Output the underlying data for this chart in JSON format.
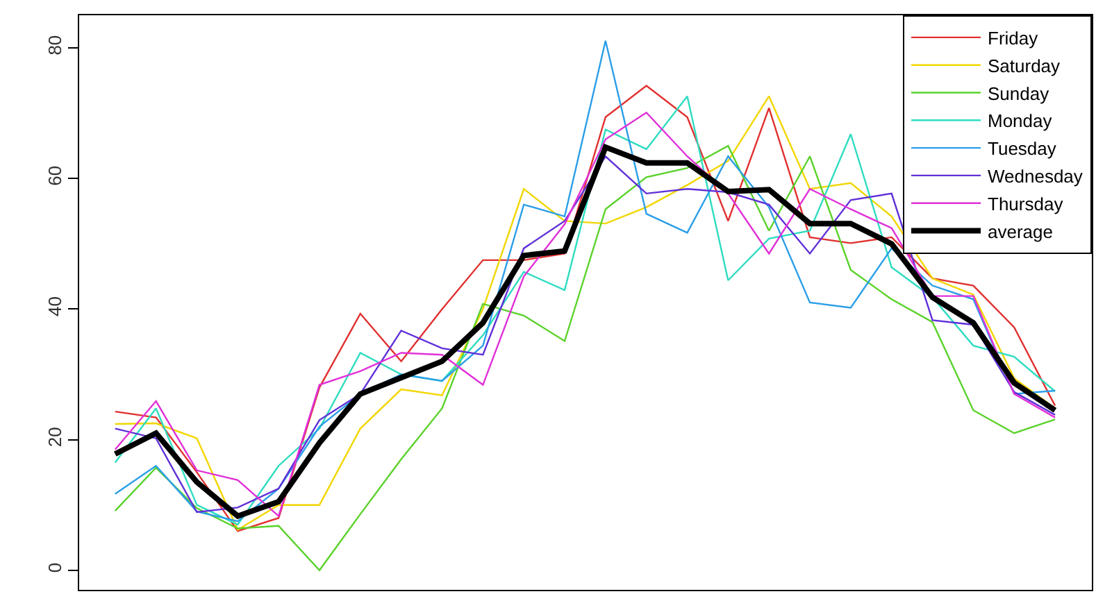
{
  "chart_data": {
    "type": "line",
    "categories": [
      null,
      null,
      null,
      null,
      null,
      null,
      null,
      null,
      null,
      null,
      null,
      null,
      null,
      null,
      null,
      null,
      null,
      null,
      null,
      null,
      null,
      null,
      null,
      null
    ],
    "series": [
      {
        "name": "Friday",
        "color": "#e0302f",
        "values": [
          24.3,
          23.4,
          15,
          6,
          8,
          28,
          39.3,
          32,
          40,
          47.5,
          47.5,
          48.5,
          69.4,
          74.2,
          69.4,
          53.5,
          70.8,
          51,
          50.1,
          51,
          44.7,
          43.6,
          37.2,
          25.2
        ]
      },
      {
        "name": "Saturday",
        "color": "#f2d600",
        "values": [
          22.4,
          22.5,
          20.2,
          6.2,
          10,
          10,
          21.7,
          27.7,
          26.8,
          40,
          58.4,
          53.5,
          53.1,
          55.6,
          59,
          62.7,
          72.6,
          58.4,
          59.3,
          54.2,
          44.7,
          42.2,
          29.4,
          24.8
        ]
      },
      {
        "name": "Sunday",
        "color": "#5ad22a",
        "values": [
          9.1,
          15.7,
          9.5,
          6.4,
          6.8,
          0,
          8.6,
          17,
          24.8,
          40.8,
          39,
          35.1,
          55.3,
          60.2,
          61.6,
          65,
          52,
          63.4,
          46,
          41.5,
          38,
          24.5,
          21,
          23.1
        ]
      },
      {
        "name": "Monday",
        "color": "#2edcc0",
        "values": [
          16.5,
          24.8,
          10,
          7,
          16,
          21.7,
          33.3,
          30,
          29,
          36,
          45.7,
          42.9,
          67.5,
          64.5,
          72.6,
          44.4,
          50.8,
          52,
          66.8,
          46.4,
          41.8,
          34.4,
          32.7,
          27.4
        ]
      },
      {
        "name": "Tuesday",
        "color": "#2a9ee8",
        "values": [
          11.7,
          16,
          9,
          7.5,
          12.5,
          22,
          27,
          30,
          29,
          34.4,
          56,
          54.2,
          81.1,
          54.6,
          51.7,
          63.4,
          55.6,
          41,
          40.2,
          49.3,
          43.6,
          41.5,
          27,
          27.5
        ]
      },
      {
        "name": "Wednesday",
        "color": "#6030d8",
        "values": [
          21.7,
          20.2,
          8.9,
          9.6,
          12.5,
          23,
          27,
          36.7,
          34,
          33,
          49.3,
          53.5,
          63.4,
          57.7,
          58.4,
          57.9,
          56,
          48.5,
          56.7,
          57.7,
          38.3,
          37.6,
          27.3,
          23.8
        ]
      },
      {
        "name": "Thursday",
        "color": "#e030d8",
        "values": [
          18.5,
          25.9,
          15.3,
          13.8,
          8.3,
          28.4,
          30.5,
          33.3,
          33,
          28.4,
          45,
          53,
          66,
          70.1,
          63.4,
          57.7,
          48.5,
          58.4,
          55.3,
          52.4,
          42,
          42,
          27,
          23.4
        ]
      },
      {
        "name": "average",
        "color": "#000000",
        "values": [
          17.8,
          21,
          13.5,
          8.3,
          10.5,
          19.5,
          27,
          29.5,
          32,
          37.9,
          48.2,
          48.9,
          64.8,
          62.4,
          62.4,
          58,
          58.3,
          53.1,
          53.1,
          50,
          41.8,
          37.9,
          28.7,
          24.5
        ]
      }
    ],
    "ylim": [
      -3,
      85
    ],
    "yticks": [
      0,
      20,
      40,
      60,
      80
    ],
    "grid": false,
    "legend": "top right",
    "tick_labels": "y",
    "line_style": "solid",
    "marker": "none"
  }
}
